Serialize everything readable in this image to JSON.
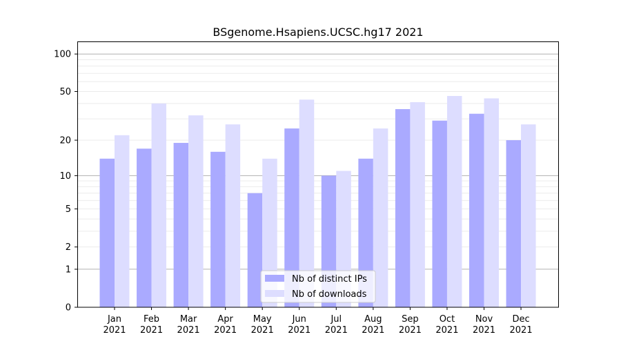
{
  "chart_data": {
    "type": "bar",
    "title": "BSgenome.Hsapiens.UCSC.hg17 2021",
    "xlabel": "",
    "ylabel": "",
    "yscale": "log(1+y)",
    "ylim": [
      0,
      120
    ],
    "yticks": [
      0,
      1,
      2,
      5,
      10,
      20,
      50,
      100
    ],
    "grid": true,
    "legend_position": "bottom-center",
    "categories": [
      "Jan\n2021",
      "Feb\n2021",
      "Mar\n2021",
      "Apr\n2021",
      "May\n2021",
      "Jun\n2021",
      "Jul\n2021",
      "Aug\n2021",
      "Sep\n2021",
      "Oct\n2021",
      "Nov\n2021",
      "Dec\n2021"
    ],
    "series": [
      {
        "name": "Nb of distinct IPs",
        "color": "#aaaaff",
        "values": [
          14,
          17,
          19,
          16,
          7,
          25,
          10,
          14,
          36,
          29,
          33,
          20
        ]
      },
      {
        "name": "Nb of downloads",
        "color": "#ddddff",
        "values": [
          22,
          40,
          32,
          27,
          14,
          43,
          11,
          25,
          41,
          46,
          44,
          27
        ]
      }
    ]
  }
}
